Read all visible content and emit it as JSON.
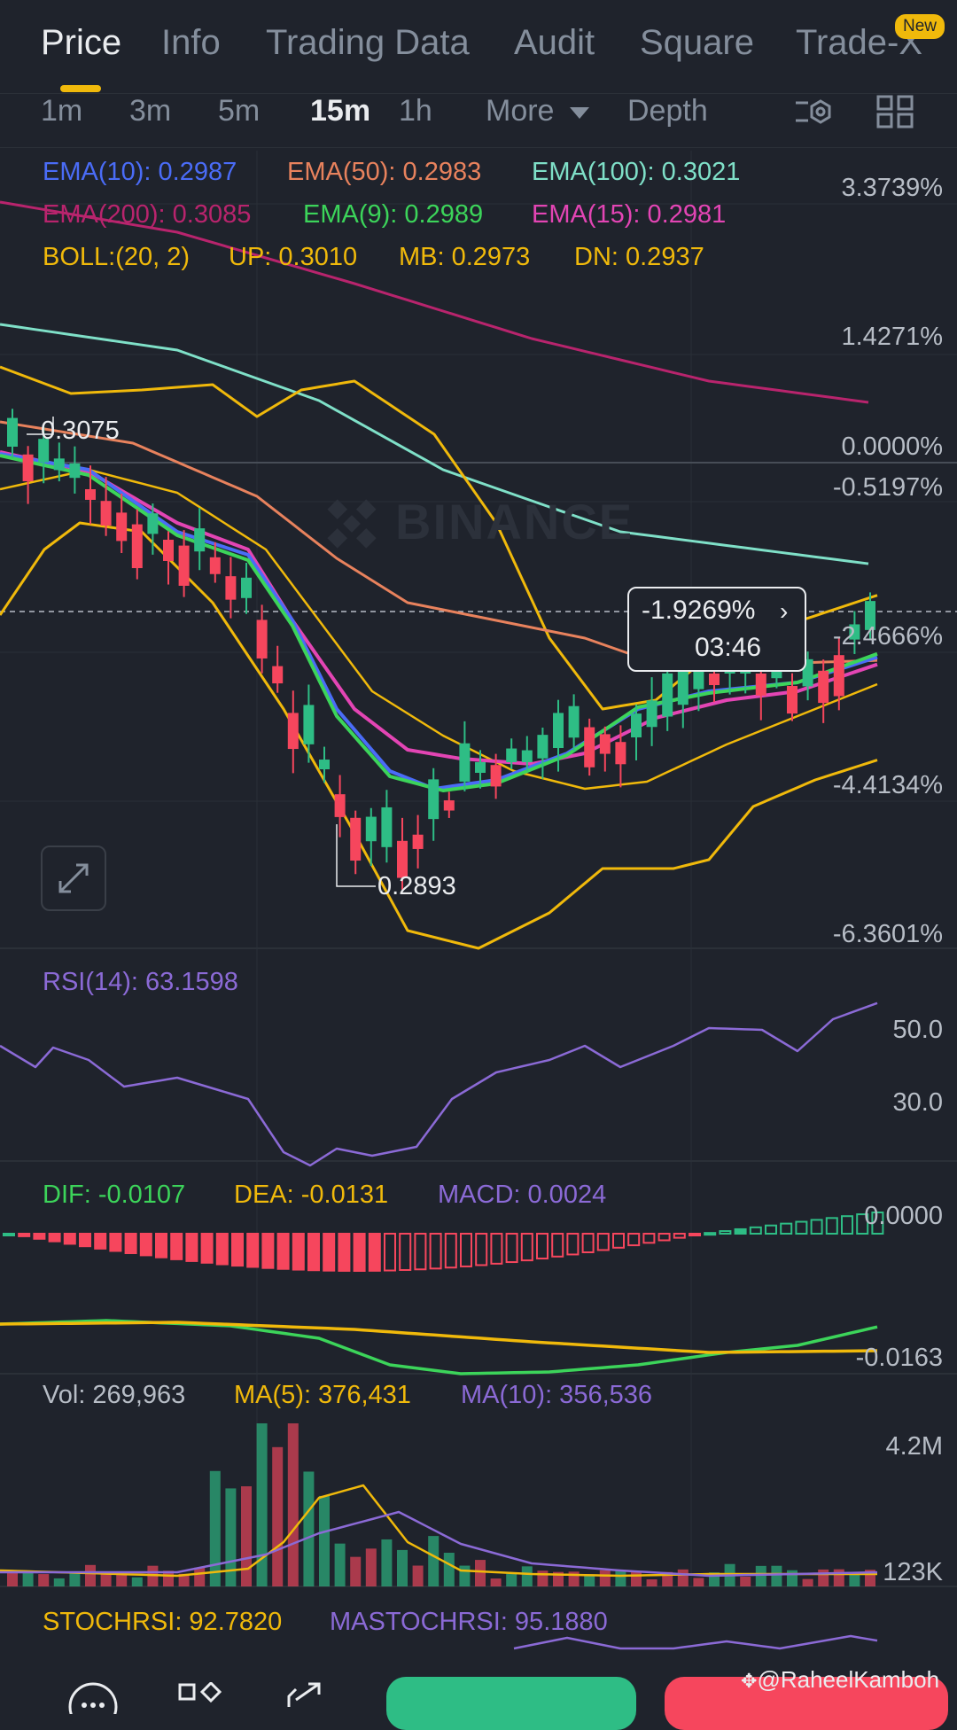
{
  "tabs": [
    {
      "label": "Price",
      "active": true
    },
    {
      "label": "Info"
    },
    {
      "label": "Trading Data"
    },
    {
      "label": "Audit"
    },
    {
      "label": "Square"
    },
    {
      "label": "Trade-X"
    }
  ],
  "new_badge": "New",
  "intervals": [
    "1m",
    "3m",
    "5m",
    "15m",
    "1h",
    "More",
    "Depth"
  ],
  "active_interval": "15m",
  "ema": {
    "ema10": "EMA(10): 0.2987",
    "ema50": "EMA(50): 0.2983",
    "ema100": "EMA(100): 0.3021",
    "ema200": "EMA(200): 0.3085",
    "ema9": "EMA(9): 0.2989",
    "ema15": "EMA(15): 0.2981"
  },
  "boll": {
    "label": "BOLL:(20, 2)",
    "up": "UP: 0.3010",
    "mb": "MB: 0.2973",
    "dn": "DN: 0.2937"
  },
  "price_axis": [
    "3.3739%",
    "1.4271%",
    "0.0000%",
    "-0.5197%",
    "-2.4666%",
    "-4.4134%",
    "-6.3601%"
  ],
  "high_label": "0.3075",
  "low_label": "0.2893",
  "watermark": "BINANCE",
  "current": {
    "change": "-1.9269%",
    "countdown": "03:46"
  },
  "rsi": {
    "label": "RSI(14): 63.1598",
    "axis": [
      "50.0",
      "30.0"
    ]
  },
  "macd": {
    "dif": "DIF: -0.0107",
    "dea": "DEA: -0.0131",
    "macd": "MACD: 0.0024",
    "axis": [
      "0.0000",
      "-0.0163"
    ]
  },
  "vol": {
    "vol": "Vol: 269,963",
    "ma5": "MA(5): 376,431",
    "ma10": "MA(10): 356,536",
    "axis": [
      "4.2M",
      "123K"
    ]
  },
  "stoch": {
    "stochrsi": "STOCHRSI: 92.7820",
    "mastochrsi": "MASTOCHRSI: 95.1880"
  },
  "watermark_user": "@RaheelKamboh",
  "colors": {
    "bg": "#1f232c",
    "up": "#2ebd85",
    "down": "#f6465d",
    "ema10": "#4a6cf7",
    "ema50": "#e8825d",
    "ema100": "#7fe0c8",
    "ema200": "#b8246d",
    "ema9": "#3cd45a",
    "ema15": "#e345b4",
    "boll": "#f0b90b",
    "rsi": "#8b6ad6",
    "dif": "#3cd45a",
    "dea": "#f0b90b",
    "macd": "#8b6ad6"
  },
  "icons": [
    "chart-settings-icon",
    "layout-grid-icon",
    "fullscreen-icon",
    "more-icon",
    "shapes-icon",
    "share-icon"
  ]
}
